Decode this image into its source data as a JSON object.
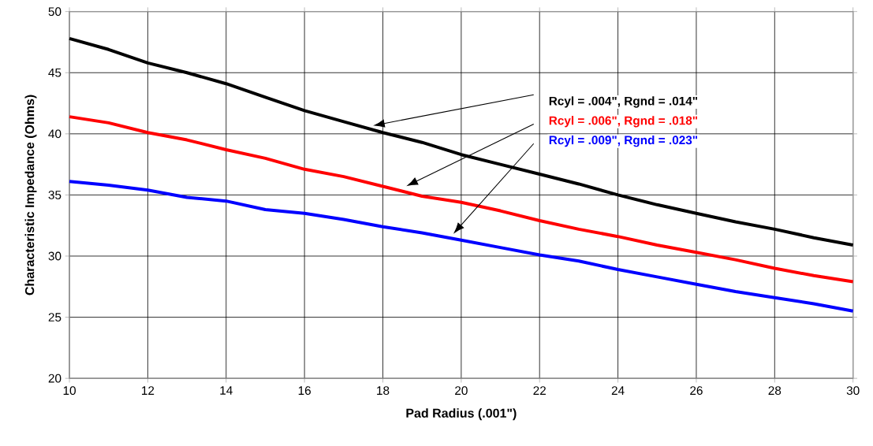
{
  "chart_data": {
    "type": "line",
    "xlabel": "Pad Radius (.001\")",
    "ylabel": "Characteristic Impedance (Ohms)",
    "x": [
      10,
      11,
      12,
      13,
      14,
      15,
      16,
      17,
      18,
      19,
      20,
      21,
      22,
      23,
      24,
      25,
      26,
      27,
      28,
      29,
      30
    ],
    "series": [
      {
        "name": "Rcyl = .004\", Rgnd = .014\"",
        "color": "#000000",
        "values": [
          47.8,
          46.9,
          45.8,
          45.0,
          44.1,
          43.0,
          41.9,
          41.0,
          40.1,
          39.3,
          38.3,
          37.5,
          36.7,
          35.9,
          35.0,
          34.2,
          33.5,
          32.8,
          32.2,
          31.5,
          30.9
        ]
      },
      {
        "name": "Rcyl = .006\", Rgnd = .018\"",
        "color": "#ff0000",
        "values": [
          41.4,
          40.9,
          40.1,
          39.5,
          38.7,
          38.0,
          37.1,
          36.5,
          35.7,
          34.9,
          34.4,
          33.7,
          32.9,
          32.2,
          31.6,
          30.9,
          30.3,
          29.7,
          29.0,
          28.4,
          27.9
        ]
      },
      {
        "name": "Rcyl = .009\", Rgnd = .023\"",
        "color": "#0000ff",
        "values": [
          36.1,
          35.8,
          35.4,
          34.8,
          34.5,
          33.8,
          33.5,
          33.0,
          32.4,
          31.9,
          31.3,
          30.7,
          30.1,
          29.6,
          28.9,
          28.3,
          27.7,
          27.1,
          26.6,
          26.1,
          25.5
        ]
      }
    ],
    "xlim": [
      10,
      30
    ],
    "xticks": [
      10,
      12,
      14,
      16,
      18,
      20,
      22,
      24,
      26,
      28,
      30
    ],
    "ylim": [
      20,
      50
    ],
    "yticks": [
      20,
      25,
      30,
      35,
      40,
      45,
      50
    ],
    "grid": true,
    "legend": false,
    "marker": "none",
    "line_style": "solid"
  }
}
